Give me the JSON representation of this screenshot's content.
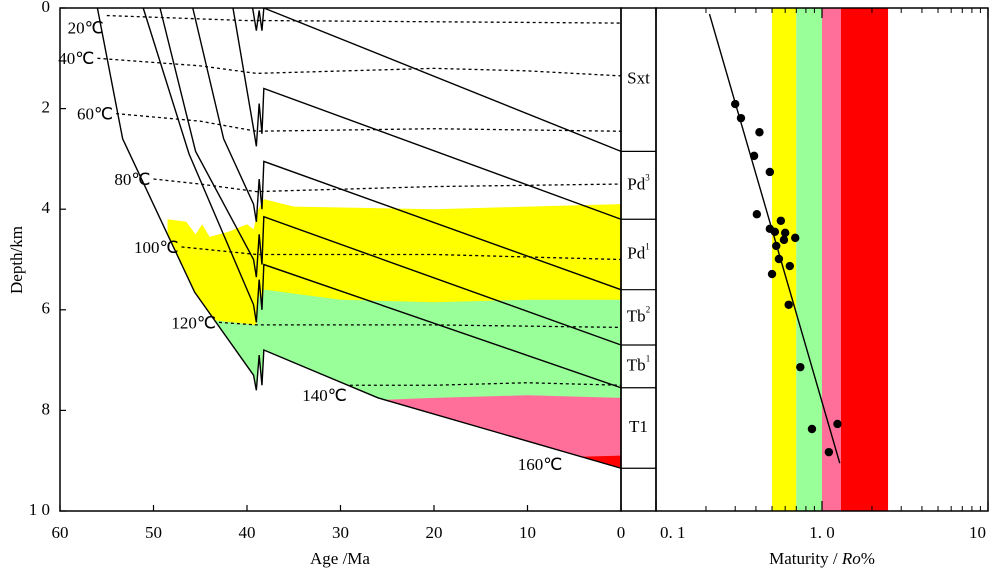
{
  "chart_data": [
    {
      "type": "burial",
      "xlabel": "Age /Ma",
      "ylabel": "Depth/km",
      "xlim": [
        60,
        0
      ],
      "xticks": [
        60,
        50,
        40,
        30,
        20,
        10,
        0
      ],
      "ylim": [
        0,
        10
      ],
      "yticks": [
        0,
        2,
        4,
        6,
        8,
        {
          "value": 10,
          "label": "1 0"
        }
      ],
      "zones": [
        {
          "color": "#ffff00",
          "x": [
            48.5,
            46.5,
            45.5,
            44.8,
            44,
            42,
            40,
            39.3,
            38.8,
            38.2,
            35,
            20,
            10,
            0
          ],
          "y": [
            4.2,
            4.25,
            4.5,
            4.3,
            4.55,
            4.45,
            4.3,
            4.4,
            4.0,
            3.8,
            3.95,
            4.0,
            3.95,
            3.9
          ]
        },
        {
          "color": "#99ff99",
          "x": [
            44,
            40,
            39.3,
            39.0,
            38.7,
            38.4,
            38.2,
            30,
            20,
            10,
            0
          ],
          "y": [
            6.2,
            6.28,
            6.3,
            6.3,
            5.7,
            5.9,
            5.6,
            5.8,
            5.85,
            5.8,
            5.8
          ]
        },
        {
          "color": "#ff6f9a",
          "x": [
            27,
            20,
            10,
            0
          ],
          "y": [
            7.8,
            7.75,
            7.7,
            7.75
          ]
        },
        {
          "color": "#ff0000",
          "x": [
            10,
            0
          ],
          "y": [
            8.95,
            8.9
          ]
        }
      ],
      "isotherms": [
        {
          "label": "20℃",
          "x": [
            55,
            40,
            38,
            0
          ],
          "y": [
            0.15,
            0.25,
            0.25,
            0.3
          ]
        },
        {
          "label": "40℃",
          "x": [
            56,
            45,
            39,
            20,
            10,
            0
          ],
          "y": [
            1.0,
            1.15,
            1.3,
            1.2,
            1.25,
            1.35
          ]
        },
        {
          "label": "60℃",
          "x": [
            54,
            45,
            39,
            20,
            0
          ],
          "y": [
            2.1,
            2.25,
            2.45,
            2.4,
            2.45
          ]
        },
        {
          "label": "80℃",
          "x": [
            50,
            45,
            39,
            20,
            0
          ],
          "y": [
            3.4,
            3.5,
            3.65,
            3.55,
            3.5
          ]
        },
        {
          "label": "100℃",
          "x": [
            47,
            39,
            20,
            0
          ],
          "y": [
            4.75,
            4.9,
            4.9,
            5.0
          ]
        },
        {
          "label": "120℃",
          "x": [
            43,
            39,
            20,
            0
          ],
          "y": [
            6.25,
            6.3,
            6.3,
            6.35
          ]
        },
        {
          "label": "140℃",
          "x": [
            29,
            20,
            10,
            0
          ],
          "y": [
            7.5,
            7.5,
            7.45,
            7.5
          ]
        },
        {
          "label": "160℃"
        }
      ],
      "lines": [
        {
          "x": [
            39.4,
            39.0,
            38.7,
            38.4,
            38.2
          ],
          "y": [
            0,
            0.45,
            0.05,
            0.45,
            0
          ]
        },
        {
          "x": [
            38.2,
            0
          ],
          "y": [
            0,
            2.85
          ]
        },
        {
          "x": [
            41.5,
            39.3,
            39.0,
            38.7,
            38.4,
            38.2,
            0
          ],
          "y": [
            0,
            2.4,
            2.75,
            1.9,
            2.5,
            1.6,
            4.2
          ]
        },
        {
          "x": [
            45.8,
            42.5,
            39.3,
            39.0,
            38.7,
            38.4,
            38.2,
            0
          ],
          "y": [
            0,
            2.6,
            3.9,
            4.25,
            3.4,
            4.0,
            3.05,
            5.6
          ]
        },
        {
          "x": [
            49.3,
            45.5,
            39.3,
            39.0,
            38.7,
            38.4,
            38.2,
            0
          ],
          "y": [
            0,
            2.85,
            5.0,
            5.35,
            4.5,
            5.1,
            4.15,
            6.7
          ]
        },
        {
          "x": [
            51.1,
            46.2,
            39.3,
            39.0,
            38.7,
            38.4,
            38.2,
            0
          ],
          "y": [
            0,
            2.9,
            5.9,
            6.25,
            5.4,
            6.0,
            5.1,
            7.55
          ]
        },
        {
          "x": [
            56,
            53.3,
            45.6,
            39.3,
            39.0,
            38.7,
            38.4,
            38.2,
            26,
            0
          ],
          "y": [
            0,
            2.6,
            5.65,
            7.3,
            7.6,
            6.9,
            7.5,
            6.8,
            7.75,
            9.15
          ]
        }
      ]
    },
    {
      "type": "column",
      "layers": [
        {
          "name": "Sxt",
          "base": 2.85
        },
        {
          "name": "Pd",
          "sup": "3",
          "base": 4.2
        },
        {
          "name": "Pd",
          "sup": "1",
          "base": 5.6
        },
        {
          "name": "Tb",
          "sup": "2",
          "base": 6.7
        },
        {
          "name": "Tb",
          "sup": "1",
          "base": 7.55
        },
        {
          "name": "T1",
          "base": 9.15
        }
      ]
    },
    {
      "type": "scatter",
      "xlabel": [
        "Maturity / ",
        "Ro",
        "%"
      ],
      "xscale": "log",
      "xlim": [
        0.1,
        10
      ],
      "ylim": [
        0,
        10
      ],
      "xticks": [
        {
          "value": 0.1,
          "label": "0. 1"
        },
        {
          "value": 1,
          "label": "1. 0"
        },
        10
      ],
      "xminorticks": [
        0.2,
        0.3,
        0.4,
        0.5,
        0.6,
        0.7,
        0.8,
        0.9,
        2,
        3,
        4,
        5,
        6,
        7,
        8,
        9
      ],
      "bands": [
        {
          "range": [
            0.5,
            0.7
          ],
          "color": "#ffff00"
        },
        {
          "range": [
            0.7,
            1.0
          ],
          "color": "#99ff99"
        },
        {
          "range": [
            1.0,
            1.3
          ],
          "color": "#ff6f9a"
        },
        {
          "range": [
            1.3,
            2.5
          ],
          "color": "#ff0000"
        }
      ],
      "x": [
        0.3,
        0.325,
        0.42,
        0.39,
        0.485,
        0.405,
        0.565,
        0.485,
        0.52,
        0.6,
        0.69,
        0.59,
        0.53,
        0.55,
        0.64,
        0.5,
        0.63,
        0.74,
        0.87,
        1.24,
        1.1
      ],
      "y": [
        1.91,
        2.19,
        2.47,
        2.94,
        3.26,
        4.1,
        4.23,
        4.39,
        4.45,
        4.47,
        4.57,
        4.61,
        4.73,
        4.99,
        5.13,
        5.29,
        5.9,
        7.14,
        8.37,
        8.27,
        8.83
      ],
      "color": "#000000",
      "trend": {
        "x": [
          0.21,
          1.28
        ],
        "y": [
          0.12,
          9.05
        ]
      }
    }
  ]
}
